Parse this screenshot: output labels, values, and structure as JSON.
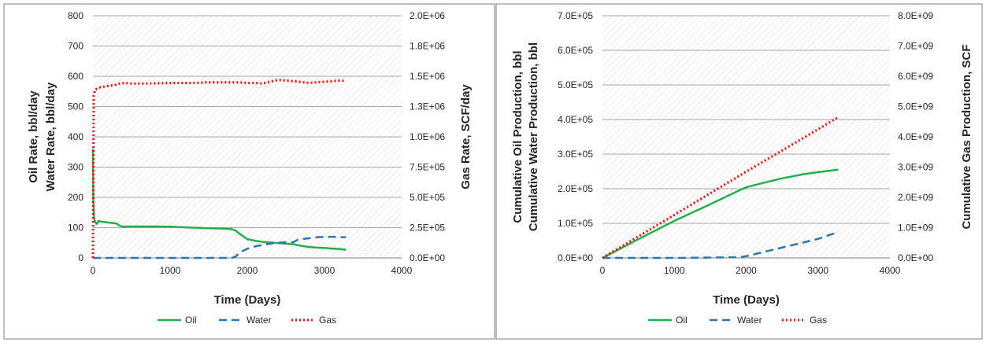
{
  "chart_data": [
    {
      "type": "line",
      "xlabel": "Time (Days)",
      "ylabel_lines": [
        "Oil Rate, bbl/day",
        "Water Rate, bbl/day"
      ],
      "y2label": "Gas Rate, SCF/day",
      "xlim": [
        0,
        4000
      ],
      "ylim": [
        0,
        800
      ],
      "y2lim": [
        0,
        2000000
      ],
      "xticks": [
        "0",
        "1000",
        "2000",
        "3000",
        "4000"
      ],
      "yticks": [
        "0",
        "100",
        "200",
        "300",
        "400",
        "500",
        "600",
        "700",
        "800"
      ],
      "y2ticks": [
        "0.0E+00",
        "2.5E+05",
        "5.0E+05",
        "7.5E+05",
        "1.0E+06",
        "1.3E+06",
        "1.5E+06",
        "1.8E+06",
        "2.0E+06"
      ],
      "grid": "horizontal",
      "legend_position": "bottom",
      "series": [
        {
          "name": "Oil",
          "axis": "left",
          "style": "solid",
          "color": "#21b14b",
          "x": [
            0,
            5,
            15,
            30,
            50,
            70,
            100,
            200,
            300,
            350,
            400,
            500,
            800,
            1000,
            1200,
            1500,
            1700,
            1800,
            1850,
            1900,
            2000,
            2100,
            2200,
            2300,
            2400,
            2500,
            2600,
            2700,
            2800,
            2900,
            3000,
            3100,
            3200,
            3280
          ],
          "y": [
            360,
            200,
            130,
            118,
            112,
            122,
            120,
            117,
            114,
            106,
            103,
            104,
            104,
            103,
            101,
            98,
            97,
            95,
            90,
            80,
            62,
            57,
            53,
            51,
            49,
            47,
            45,
            40,
            36,
            34,
            33,
            31,
            29,
            27
          ]
        },
        {
          "name": "Water",
          "axis": "left",
          "style": "dash",
          "color": "#2e75b6",
          "x": [
            0,
            1000,
            1800,
            1850,
            1900,
            2000,
            2100,
            2200,
            2300,
            2400,
            2500,
            2600,
            2650,
            2700,
            2800,
            2900,
            3000,
            3100,
            3280
          ],
          "y": [
            0,
            0,
            0,
            5,
            18,
            30,
            38,
            43,
            47,
            50,
            52,
            52,
            60,
            62,
            65,
            68,
            70,
            70,
            68
          ]
        },
        {
          "name": "Gas",
          "axis": "right",
          "style": "dot",
          "color": "#ff0000",
          "x": [
            0,
            10,
            30,
            60,
            100,
            200,
            300,
            350,
            400,
            500,
            700,
            1000,
            1300,
            1500,
            1700,
            1900,
            2000,
            2100,
            2200,
            2300,
            2400,
            2600,
            2800,
            3000,
            3100,
            3200,
            3280
          ],
          "y": [
            0,
            1340000,
            1390000,
            1400000,
            1410000,
            1420000,
            1430000,
            1440000,
            1445000,
            1440000,
            1440000,
            1445000,
            1445000,
            1450000,
            1450000,
            1450000,
            1445000,
            1445000,
            1440000,
            1455000,
            1470000,
            1460000,
            1445000,
            1455000,
            1460000,
            1465000,
            1460000
          ]
        }
      ]
    },
    {
      "type": "line",
      "xlabel": "Time (Days)",
      "ylabel_lines": [
        "Cumulative Oil Production, bbl",
        "Cumulative Water Production, bbl"
      ],
      "y2label": "Cumulative Gas Production, SCF",
      "xlim": [
        0,
        4000
      ],
      "ylim": [
        0,
        700000
      ],
      "y2lim": [
        0,
        8000000000
      ],
      "xticks": [
        "0",
        "1000",
        "2000",
        "3000",
        "4000"
      ],
      "yticks": [
        "0.0E+00",
        "1.0E+05",
        "2.0E+05",
        "3.0E+05",
        "4.0E+05",
        "5.0E+05",
        "6.0E+05",
        "7.0E+05"
      ],
      "y2ticks": [
        "0.0E+00",
        "1.0E+09",
        "2.0E+09",
        "3.0E+09",
        "4.0E+09",
        "5.0E+09",
        "6.0E+09",
        "7.0E+09",
        "8.0E+09"
      ],
      "grid": "horizontal",
      "legend_position": "bottom",
      "series": [
        {
          "name": "Oil",
          "axis": "left",
          "style": "solid",
          "color": "#21b14b",
          "x": [
            0,
            500,
            1000,
            1500,
            1900,
            2000,
            2200,
            2500,
            2800,
            3000,
            3280
          ],
          "y": [
            0,
            54000,
            107000,
            155000,
            195000,
            204000,
            215000,
            230000,
            242000,
            248000,
            255000
          ]
        },
        {
          "name": "Water",
          "axis": "left",
          "style": "dash",
          "color": "#2e75b6",
          "x": [
            0,
            1000,
            1900,
            2000,
            2300,
            2600,
            3000,
            3280
          ],
          "y": [
            0,
            0,
            2000,
            5000,
            20000,
            35000,
            55000,
            75000
          ]
        },
        {
          "name": "Gas",
          "axis": "right",
          "style": "dot",
          "color": "#ff0000",
          "x": [
            0,
            1000,
            2000,
            3000,
            3280
          ],
          "y": [
            0,
            1420000000,
            2850000000,
            4250000000,
            4650000000
          ]
        }
      ]
    }
  ]
}
